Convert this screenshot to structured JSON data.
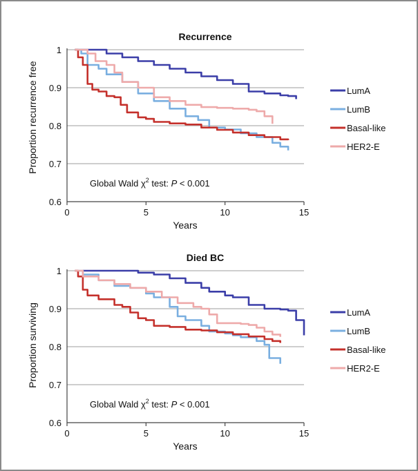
{
  "chart_data": [
    {
      "type": "line",
      "title": "Recurrence",
      "xlabel": "Years",
      "ylabel": "Proportion recurrence free",
      "xlim": [
        0,
        15
      ],
      "ylim": [
        0.6,
        1
      ],
      "xticks": [
        "0",
        "5",
        "10",
        "15"
      ],
      "yticks": [
        "0.6",
        "0.7",
        "0.8",
        "0.9",
        "1"
      ],
      "annotation": {
        "prefix": "Global Wald χ",
        "sup": "2",
        "middle": " test: ",
        "p": "P",
        "suffix": " < 0.001"
      },
      "grid": "horizontal",
      "legend_position": "right",
      "series": [
        {
          "name": "LumA",
          "color": "#3b3ea8",
          "points": [
            [
              0.5,
              1.0
            ],
            [
              1.5,
              1.0
            ],
            [
              2.5,
              0.99
            ],
            [
              3.5,
              0.98
            ],
            [
              4.5,
              0.97
            ],
            [
              5.5,
              0.96
            ],
            [
              6.5,
              0.95
            ],
            [
              7.5,
              0.94
            ],
            [
              8.5,
              0.93
            ],
            [
              9.5,
              0.92
            ],
            [
              10.5,
              0.91
            ],
            [
              11.5,
              0.89
            ],
            [
              12.5,
              0.885
            ],
            [
              13.5,
              0.88
            ],
            [
              14.0,
              0.878
            ],
            [
              14.5,
              0.87
            ]
          ]
        },
        {
          "name": "LumB",
          "color": "#7aafe0",
          "points": [
            [
              0.5,
              1.0
            ],
            [
              0.9,
              0.99
            ],
            [
              1.3,
              0.96
            ],
            [
              2.0,
              0.95
            ],
            [
              2.5,
              0.935
            ],
            [
              3.5,
              0.915
            ],
            [
              4.5,
              0.885
            ],
            [
              5.5,
              0.865
            ],
            [
              6.5,
              0.845
            ],
            [
              7.5,
              0.825
            ],
            [
              8.3,
              0.815
            ],
            [
              9.0,
              0.795
            ],
            [
              10.0,
              0.79
            ],
            [
              11.0,
              0.78
            ],
            [
              12.0,
              0.77
            ],
            [
              13.0,
              0.755
            ],
            [
              13.5,
              0.745
            ],
            [
              14.0,
              0.735
            ]
          ]
        },
        {
          "name": "Basal-like",
          "color": "#c4302b",
          "points": [
            [
              0.5,
              1.0
            ],
            [
              0.7,
              0.98
            ],
            [
              1.0,
              0.96
            ],
            [
              1.3,
              0.91
            ],
            [
              1.6,
              0.895
            ],
            [
              2.0,
              0.89
            ],
            [
              2.5,
              0.878
            ],
            [
              3.0,
              0.875
            ],
            [
              3.4,
              0.855
            ],
            [
              3.8,
              0.835
            ],
            [
              4.5,
              0.822
            ],
            [
              5.0,
              0.818
            ],
            [
              5.5,
              0.81
            ],
            [
              6.5,
              0.806
            ],
            [
              7.5,
              0.803
            ],
            [
              8.5,
              0.795
            ],
            [
              9.5,
              0.789
            ],
            [
              10.5,
              0.782
            ],
            [
              11.5,
              0.775
            ],
            [
              12.5,
              0.77
            ],
            [
              13.5,
              0.764
            ],
            [
              14.0,
              0.762
            ]
          ]
        },
        {
          "name": "HER2-E",
          "color": "#eeaaaa",
          "points": [
            [
              0.5,
              1.0
            ],
            [
              1.3,
              0.99
            ],
            [
              1.8,
              0.97
            ],
            [
              2.5,
              0.96
            ],
            [
              3.0,
              0.94
            ],
            [
              3.5,
              0.915
            ],
            [
              4.5,
              0.9
            ],
            [
              5.5,
              0.875
            ],
            [
              6.5,
              0.865
            ],
            [
              7.5,
              0.855
            ],
            [
              8.5,
              0.849
            ],
            [
              9.5,
              0.847
            ],
            [
              10.5,
              0.845
            ],
            [
              11.5,
              0.842
            ],
            [
              12.0,
              0.838
            ],
            [
              12.5,
              0.825
            ],
            [
              13.0,
              0.805
            ]
          ]
        }
      ]
    },
    {
      "type": "line",
      "title": "Died BC",
      "xlabel": "Years",
      "ylabel": "Proportion surviving",
      "xlim": [
        0,
        15
      ],
      "ylim": [
        0.6,
        1
      ],
      "xticks": [
        "0",
        "5",
        "10",
        "15"
      ],
      "yticks": [
        "0.6",
        "0.7",
        "0.8",
        "0.9",
        "1"
      ],
      "annotation": {
        "prefix": "Global Wald χ",
        "sup": "2",
        "middle": " test: ",
        "p": "P",
        "suffix": " < 0.001"
      },
      "grid": "horizontal",
      "legend_position": "right",
      "series": [
        {
          "name": "LumA",
          "color": "#3b3ea8",
          "points": [
            [
              1.0,
              1.0
            ],
            [
              3.0,
              1.0
            ],
            [
              4.5,
              0.995
            ],
            [
              5.5,
              0.99
            ],
            [
              6.5,
              0.98
            ],
            [
              7.5,
              0.968
            ],
            [
              8.5,
              0.955
            ],
            [
              9.0,
              0.945
            ],
            [
              10.0,
              0.935
            ],
            [
              10.5,
              0.93
            ],
            [
              11.5,
              0.91
            ],
            [
              12.5,
              0.9
            ],
            [
              13.5,
              0.898
            ],
            [
              14.0,
              0.895
            ],
            [
              14.5,
              0.87
            ],
            [
              15.0,
              0.83
            ]
          ]
        },
        {
          "name": "LumB",
          "color": "#7aafe0",
          "points": [
            [
              0.5,
              1.0
            ],
            [
              1.0,
              0.99
            ],
            [
              2.0,
              0.975
            ],
            [
              3.0,
              0.96
            ],
            [
              4.0,
              0.955
            ],
            [
              5.0,
              0.94
            ],
            [
              5.5,
              0.93
            ],
            [
              6.5,
              0.905
            ],
            [
              7.0,
              0.88
            ],
            [
              7.5,
              0.87
            ],
            [
              8.5,
              0.855
            ],
            [
              9.0,
              0.84
            ],
            [
              10.0,
              0.835
            ],
            [
              10.5,
              0.83
            ],
            [
              11.0,
              0.825
            ],
            [
              12.0,
              0.815
            ],
            [
              12.5,
              0.805
            ],
            [
              12.8,
              0.77
            ],
            [
              13.5,
              0.755
            ]
          ]
        },
        {
          "name": "Basal-like",
          "color": "#c4302b",
          "points": [
            [
              0.5,
              1.0
            ],
            [
              0.7,
              0.985
            ],
            [
              1.0,
              0.95
            ],
            [
              1.3,
              0.935
            ],
            [
              2.0,
              0.925
            ],
            [
              3.0,
              0.91
            ],
            [
              3.5,
              0.905
            ],
            [
              4.0,
              0.89
            ],
            [
              4.5,
              0.875
            ],
            [
              5.0,
              0.87
            ],
            [
              5.5,
              0.855
            ],
            [
              6.5,
              0.852
            ],
            [
              7.5,
              0.845
            ],
            [
              8.5,
              0.843
            ],
            [
              9.5,
              0.838
            ],
            [
              10.5,
              0.833
            ],
            [
              11.5,
              0.827
            ],
            [
              12.5,
              0.82
            ],
            [
              13.0,
              0.815
            ],
            [
              13.5,
              0.81
            ]
          ]
        },
        {
          "name": "HER2-E",
          "color": "#eeaaaa",
          "points": [
            [
              0.5,
              1.0
            ],
            [
              1.0,
              0.985
            ],
            [
              2.0,
              0.975
            ],
            [
              3.0,
              0.965
            ],
            [
              4.0,
              0.955
            ],
            [
              5.0,
              0.945
            ],
            [
              6.0,
              0.93
            ],
            [
              7.0,
              0.915
            ],
            [
              8.0,
              0.905
            ],
            [
              8.5,
              0.9
            ],
            [
              9.0,
              0.885
            ],
            [
              9.5,
              0.862
            ],
            [
              10.5,
              0.862
            ],
            [
              11.0,
              0.86
            ],
            [
              11.5,
              0.857
            ],
            [
              12.0,
              0.85
            ],
            [
              12.5,
              0.84
            ],
            [
              13.0,
              0.832
            ],
            [
              13.5,
              0.826
            ]
          ]
        }
      ]
    }
  ]
}
